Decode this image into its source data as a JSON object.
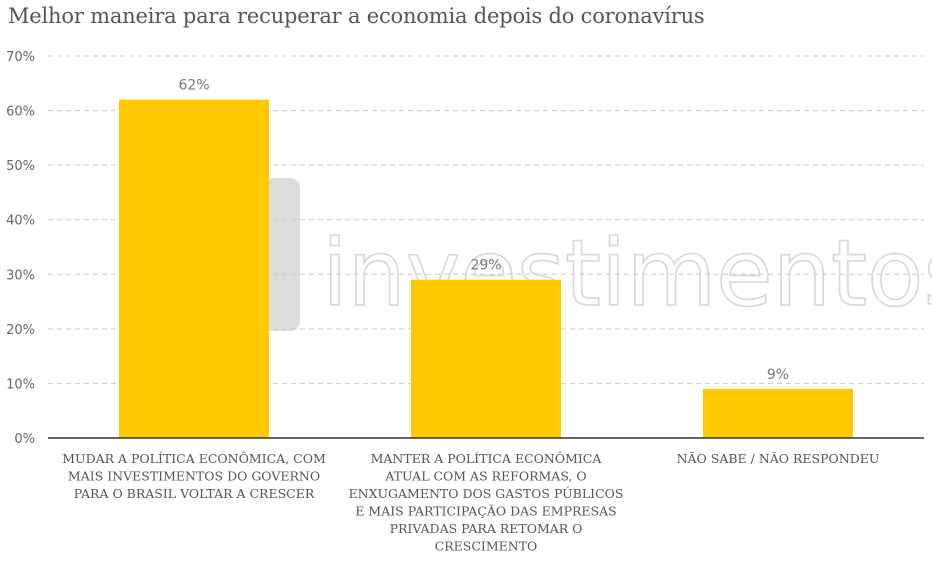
{
  "chart_data": {
    "type": "bar",
    "title": "Melhor maneira para recuperar a economia depois do coronavírus",
    "categories": [
      [
        "MUDAR A POLÍTICA ECONÔMICA, COM",
        "MAIS INVESTIMENTOS DO GOVERNO",
        "PARA O BRASIL VOLTAR A CRESCER"
      ],
      [
        "MANTER A POLÍTICA ECONÔMICA",
        "ATUAL COM AS REFORMAS, O",
        "ENXUGAMENTO DOS GASTOS PÚBLICOS",
        "E MAIS PARTICIPAÇÃO DAS EMPRESAS",
        "PRIVADAS PARA RETOMAR O",
        "CRESCIMENTO"
      ],
      [
        "NÃO SABE / NÃO RESPONDEU"
      ]
    ],
    "values": [
      62,
      29,
      9
    ],
    "data_labels": [
      "62%",
      "29%",
      "9%"
    ],
    "ylim": [
      0,
      70
    ],
    "yticks": [
      0,
      10,
      20,
      30,
      40,
      50,
      60,
      70
    ],
    "ytick_labels": [
      "0%",
      "10%",
      "20%",
      "30%",
      "40%",
      "50%",
      "60%",
      "70%"
    ],
    "grid": true,
    "bar_color": "#FFC800",
    "watermark": "investimentos"
  }
}
